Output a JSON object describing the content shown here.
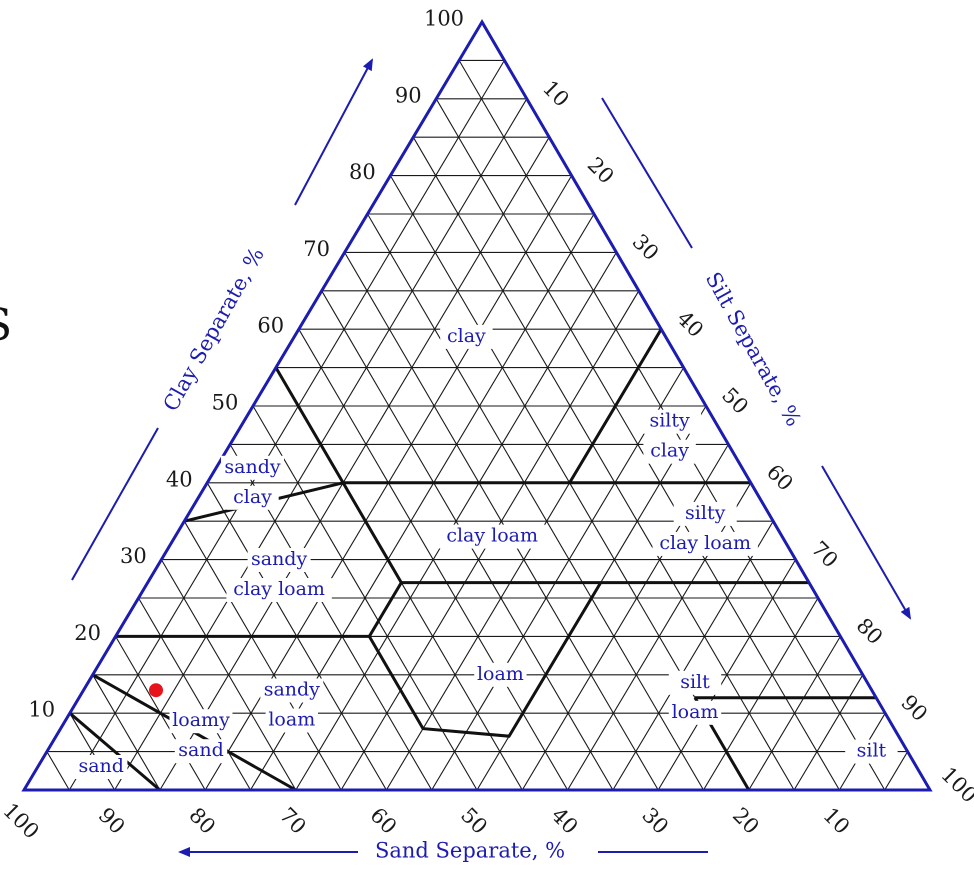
{
  "axes": {
    "clay": {
      "title": "Clay Separate, %",
      "ticks": [
        "10",
        "20",
        "30",
        "40",
        "50",
        "60",
        "70",
        "80",
        "90",
        "100"
      ]
    },
    "silt": {
      "title": "Silt Separate, %",
      "ticks": [
        "10",
        "20",
        "30",
        "40",
        "50",
        "60",
        "70",
        "80",
        "90",
        "100"
      ]
    },
    "sand": {
      "title": "Sand Separate, %",
      "ticks": [
        "100",
        "90",
        "80",
        "70",
        "60",
        "50",
        "40",
        "30",
        "20",
        "10"
      ]
    }
  },
  "regions": [
    {
      "id": "clay",
      "lines": [
        "clay"
      ]
    },
    {
      "id": "silty-clay",
      "lines": [
        "silty",
        "clay"
      ]
    },
    {
      "id": "sandy-clay",
      "lines": [
        "sandy",
        "clay"
      ]
    },
    {
      "id": "clay-loam",
      "lines": [
        "clay loam"
      ]
    },
    {
      "id": "silty-clay-loam",
      "lines": [
        "silty",
        "clay loam"
      ]
    },
    {
      "id": "sandy-clay-loam",
      "lines": [
        "sandy",
        "clay loam"
      ]
    },
    {
      "id": "loam",
      "lines": [
        "loam"
      ]
    },
    {
      "id": "silt-loam",
      "lines": [
        "silt",
        "loam"
      ]
    },
    {
      "id": "sandy-loam",
      "lines": [
        "sandy",
        "loam"
      ]
    },
    {
      "id": "silt",
      "lines": [
        "silt"
      ]
    },
    {
      "id": "loamy-sand",
      "lines": [
        "loamy",
        "sand"
      ]
    },
    {
      "id": "sand",
      "lines": [
        "sand"
      ]
    }
  ],
  "marker": {
    "sand": 79,
    "silt": 8,
    "clay": 13,
    "color": "#e8141c"
  },
  "edge_glyph": "S",
  "colors": {
    "outline": "#1c1cb0",
    "grid": "#1a1a1a",
    "boundary": "#111111",
    "label": "#1c1cb0"
  }
}
